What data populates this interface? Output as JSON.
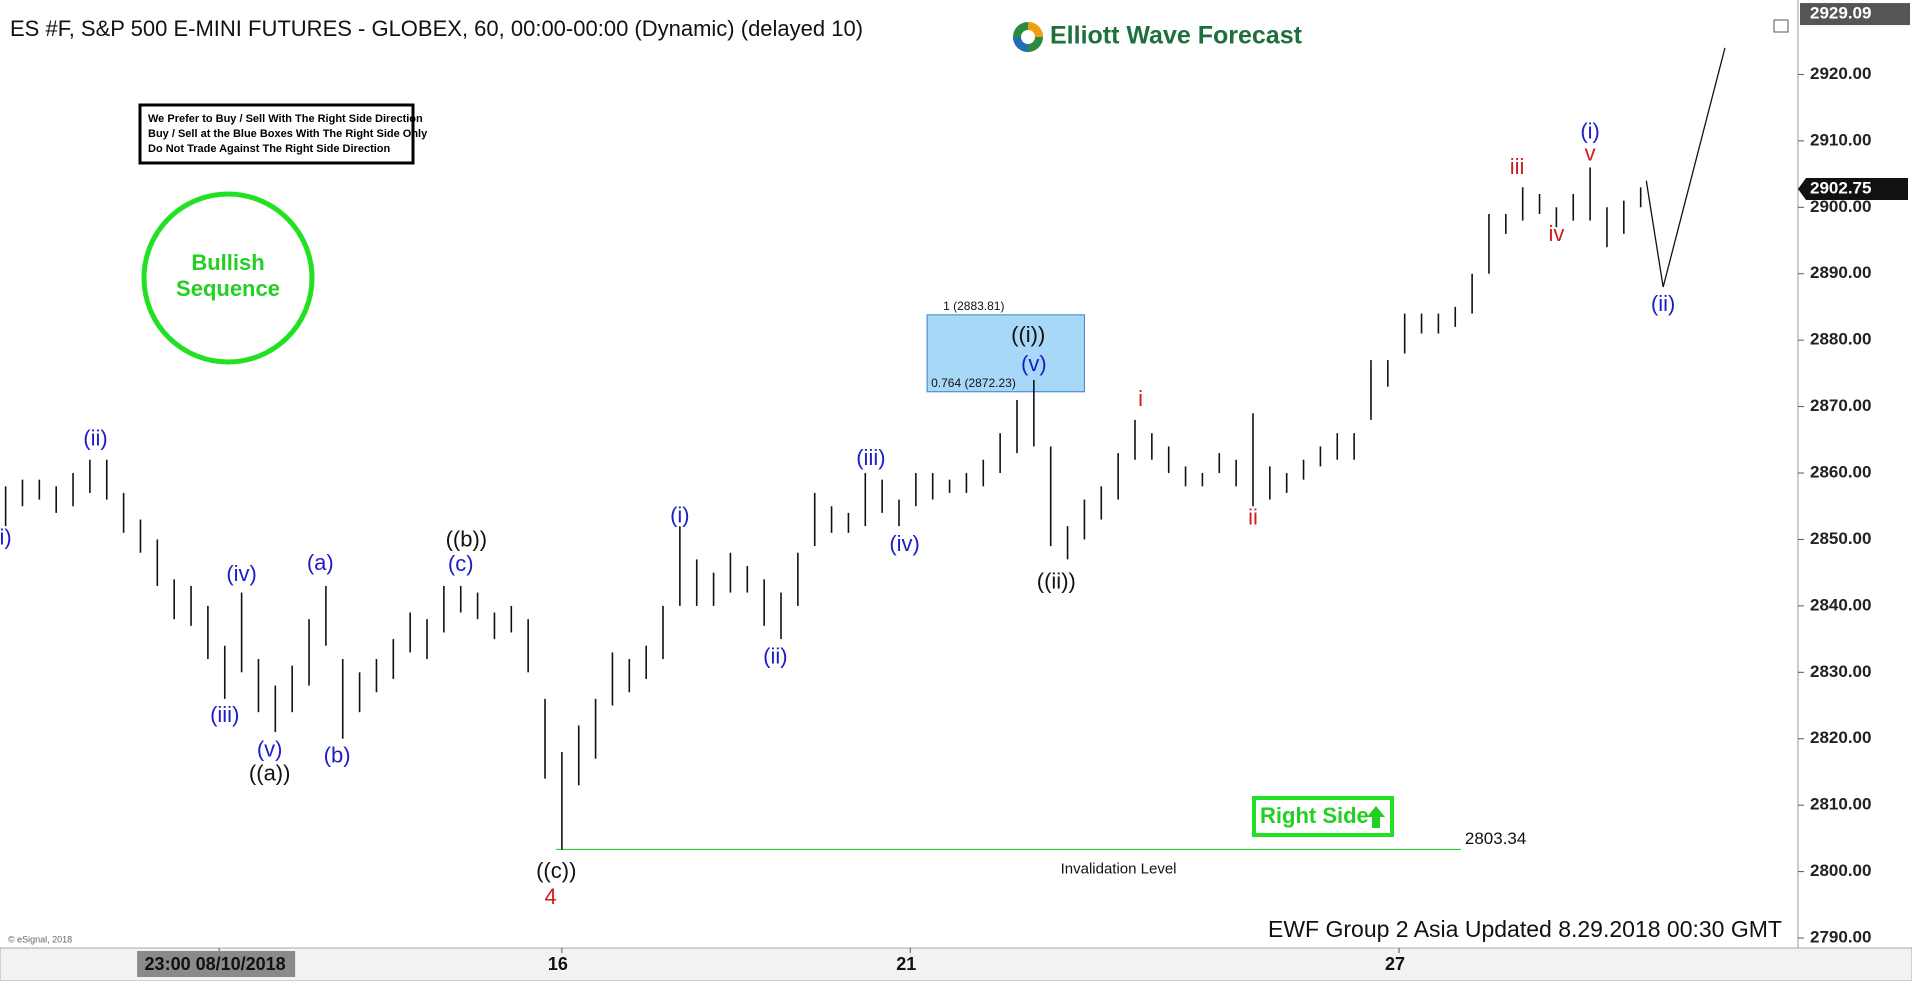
{
  "chart_data": {
    "type": "ohlc",
    "title": "ES #F, S&P 500 E-MINI FUTURES - GLOBEX, 60, 00:00-00:00 (Dynamic) (delayed 10)",
    "logo": "Elliott Wave Forecast",
    "note": [
      "We Prefer to Buy / Sell With The Right Side Direction",
      "Buy / Sell at the Blue Boxes With The Right Side Only",
      "Do Not Trade Against The Right Side Direction"
    ],
    "badge": [
      "Bullish",
      "Sequence"
    ],
    "right_side": "Right Side",
    "footer": "EWF Group 2 Asia Updated 8.29.2018 00:30 GMT",
    "copyright": "© eSignal, 2018",
    "top_price": 2929.09,
    "last_price": 2902.75,
    "color": "#111111",
    "ylim": [
      2788.5,
      2929.7
    ],
    "yticks": [
      {
        "value": 2790,
        "label": "2790.00"
      },
      {
        "value": 2800,
        "label": "2800.00"
      },
      {
        "value": 2810,
        "label": "2810.00"
      },
      {
        "value": 2820,
        "label": "2820.00"
      },
      {
        "value": 2830,
        "label": "2830.00"
      },
      {
        "value": 2840,
        "label": "2840.00"
      },
      {
        "value": 2850,
        "label": "2850.00"
      },
      {
        "value": 2860,
        "label": "2860.00"
      },
      {
        "value": 2870,
        "label": "2870.00"
      },
      {
        "value": 2880,
        "label": "2880.00"
      },
      {
        "value": 2890,
        "label": "2890.00"
      },
      {
        "value": 2900,
        "label": "2900.00"
      },
      {
        "value": 2910,
        "label": "2910.00"
      },
      {
        "value": 2920,
        "label": "2920.00"
      }
    ],
    "xlim": [
      0,
      320
    ],
    "xticks": [
      {
        "value": 39,
        "label": "23:00 08/10/2018"
      },
      {
        "value": 100,
        "label": "16"
      },
      {
        "value": 162,
        "label": "21"
      },
      {
        "value": 249,
        "label": "27"
      }
    ],
    "bars": {
      "x": [
        1,
        4,
        7,
        10,
        13,
        16,
        19,
        22,
        25,
        28,
        31,
        34,
        37,
        40,
        43,
        46,
        49,
        52,
        55,
        58,
        61,
        64,
        67,
        70,
        73,
        76,
        79,
        82,
        85,
        88,
        91,
        94,
        97,
        100,
        103,
        106,
        109,
        112,
        115,
        118,
        121,
        124,
        127,
        130,
        133,
        136,
        139,
        142,
        145,
        148,
        151,
        154,
        157,
        160,
        163,
        166,
        169,
        172,
        175,
        178,
        181,
        184,
        187,
        190,
        193,
        196,
        199,
        202,
        205,
        208,
        211,
        214,
        217,
        220,
        223,
        226,
        229,
        232,
        235,
        238,
        241,
        244,
        247,
        250,
        253,
        256,
        259,
        262,
        265,
        268,
        271,
        274,
        277,
        280,
        283,
        286,
        289,
        292
      ],
      "high": [
        2858,
        2859,
        2859,
        2858,
        2860,
        2862,
        2862,
        2857,
        2853,
        2850,
        2844,
        2843,
        2840,
        2834,
        2842,
        2832,
        2828,
        2831,
        2838,
        2843,
        2832,
        2830,
        2832,
        2835,
        2839,
        2838,
        2843,
        2843,
        2842,
        2839,
        2840,
        2838,
        2826,
        2818,
        2822,
        2826,
        2833,
        2832,
        2834,
        2840,
        2852,
        2847,
        2845,
        2848,
        2846,
        2844,
        2842,
        2848,
        2857,
        2855,
        2854,
        2860,
        2859,
        2856,
        2860,
        2860,
        2859,
        2860,
        2862,
        2866,
        2871,
        2874,
        2864,
        2852,
        2856,
        2858,
        2863,
        2868,
        2866,
        2864,
        2861,
        2860,
        2863,
        2862,
        2869,
        2861,
        2860,
        2862,
        2864,
        2866,
        2866,
        2877,
        2877,
        2884,
        2884,
        2884,
        2885,
        2890,
        2899,
        2899,
        2903,
        2902,
        2900,
        2902,
        2906,
        2900,
        2901,
        2903
      ],
      "low": [
        2852,
        2855,
        2856,
        2854,
        2855,
        2857,
        2856,
        2851,
        2848,
        2843,
        2838,
        2837,
        2832,
        2826,
        2830,
        2824,
        2821,
        2824,
        2828,
        2834,
        2820,
        2824,
        2827,
        2829,
        2833,
        2832,
        2836,
        2839,
        2838,
        2835,
        2836,
        2830,
        2814,
        2803.3,
        2813,
        2817,
        2825,
        2827,
        2829,
        2832,
        2840,
        2840,
        2840,
        2842,
        2842,
        2837,
        2835,
        2840,
        2849,
        2851,
        2851,
        2852,
        2854,
        2852,
        2855,
        2856,
        2857,
        2857,
        2858,
        2860,
        2863,
        2864,
        2849,
        2847,
        2850,
        2853,
        2856,
        2862,
        2862,
        2860,
        2858,
        2858,
        2860,
        2858,
        2855,
        2856,
        2857,
        2859,
        2861,
        2862,
        2862,
        2868,
        2873,
        2878,
        2881,
        2881,
        2882,
        2884,
        2890,
        2896,
        2898,
        2899,
        2897,
        2898,
        2898,
        2894,
        2896,
        2900
      ]
    },
    "projection": {
      "x": [
        293,
        296,
        307
      ],
      "y": [
        2904,
        2888,
        2924
      ]
    },
    "blue_box": {
      "x": [
        165,
        193
      ],
      "y": [
        2872.23,
        2883.81
      ],
      "labels": [
        "0.764 (2872.23)",
        "1 (2883.81)"
      ]
    },
    "invalidation": {
      "value": 2803.34,
      "x": [
        99,
        260
      ],
      "label": "Invalidation Level"
    },
    "labels": [
      {
        "text": "i)",
        "x": 1,
        "y": 2850.1,
        "color": "#1c1cc8"
      },
      {
        "text": "(ii)",
        "x": 17,
        "y": 2865,
        "color": "#1c1cc8"
      },
      {
        "text": "(iii)",
        "x": 40,
        "y": 2823.4,
        "color": "#1c1cc8"
      },
      {
        "text": "(iv)",
        "x": 43,
        "y": 2844.6,
        "color": "#1c1cc8"
      },
      {
        "text": "(v)",
        "x": 48,
        "y": 2818.2,
        "color": "#1c1cc8"
      },
      {
        "text": "((a))",
        "x": 48,
        "y": 2814.6,
        "color": "#111111"
      },
      {
        "text": "(a)",
        "x": 57,
        "y": 2846.3,
        "color": "#1c1cc8"
      },
      {
        "text": "(b)",
        "x": 60,
        "y": 2817.3,
        "color": "#1c1cc8"
      },
      {
        "text": "((b))",
        "x": 83,
        "y": 2849.8,
        "color": "#111111"
      },
      {
        "text": "(c)",
        "x": 82,
        "y": 2846.1,
        "color": "#1c1cc8"
      },
      {
        "text": "((c))",
        "x": 99,
        "y": 2799.9,
        "color": "#111111"
      },
      {
        "text": "4",
        "x": 98,
        "y": 2796,
        "color": "#d01c1c"
      },
      {
        "text": "(i)",
        "x": 121,
        "y": 2853.4,
        "color": "#1c1cc8"
      },
      {
        "text": "(ii)",
        "x": 138,
        "y": 2832.2,
        "color": "#1c1cc8"
      },
      {
        "text": "(iii)",
        "x": 155,
        "y": 2862.1,
        "color": "#1c1cc8"
      },
      {
        "text": "(iv)",
        "x": 161,
        "y": 2849.1,
        "color": "#1c1cc8"
      },
      {
        "text": "((i))",
        "x": 183,
        "y": 2880.6,
        "color": "#111111"
      },
      {
        "text": "(v)",
        "x": 184,
        "y": 2876.2,
        "color": "#1c1cc8"
      },
      {
        "text": "((ii))",
        "x": 188,
        "y": 2843.5,
        "color": "#111111"
      },
      {
        "text": "i",
        "x": 203,
        "y": 2871,
        "color": "#d01c1c"
      },
      {
        "text": "ii",
        "x": 223,
        "y": 2853.1,
        "color": "#d01c1c"
      },
      {
        "text": "iii",
        "x": 270,
        "y": 2905.9,
        "color": "#d01c1c"
      },
      {
        "text": "iv",
        "x": 277,
        "y": 2895.8,
        "color": "#d01c1c"
      },
      {
        "text": "v",
        "x": 283,
        "y": 2907.9,
        "color": "#d01c1c"
      },
      {
        "text": "(i)",
        "x": 283,
        "y": 2911.2,
        "color": "#1c1cc8"
      },
      {
        "text": "(ii)",
        "x": 296,
        "y": 2885.3,
        "color": "#1c1cc8"
      }
    ]
  }
}
